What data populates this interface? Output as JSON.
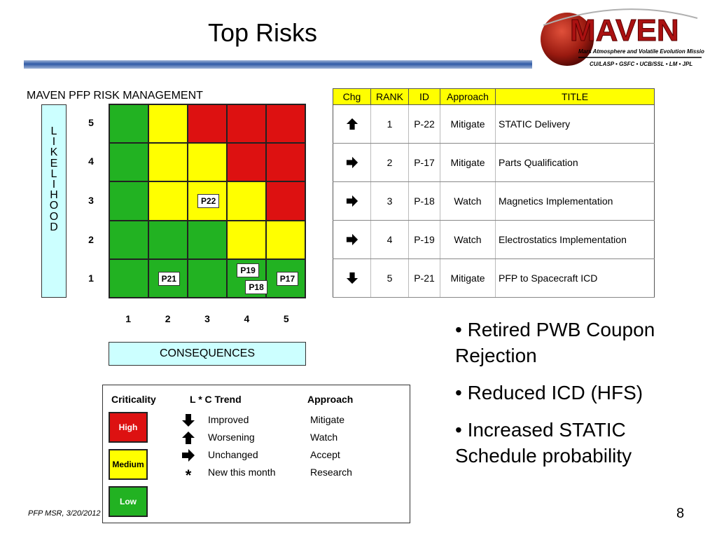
{
  "slide": {
    "title": "Top Risks",
    "footer": "PFP MSR, 3/20/2012",
    "page_number": "8"
  },
  "logo": {
    "name": "MAVEN",
    "subtitle": "Mars Atmosphere and Volatile Evolution Mission",
    "partners": "CU/LASP • GSFC • UCB/SSL • LM • JPL"
  },
  "matrix": {
    "title": "MAVEN PFP RISK MANAGEMENT",
    "likelihood_letters": [
      "L",
      "I",
      "K",
      "E",
      "L",
      "I",
      "H",
      "O",
      "O",
      "D"
    ],
    "y_labels": [
      "5",
      "4",
      "3",
      "2",
      "1"
    ],
    "x_labels": [
      "1",
      "2",
      "3",
      "4",
      "5"
    ],
    "consequences_label": "CONSEQUENCES",
    "colors": {
      "green": "#22b222",
      "yellow": "#ffff00",
      "red": "#dd1111"
    },
    "cells": [
      [
        "green",
        "yellow",
        "red",
        "red",
        "red"
      ],
      [
        "green",
        "yellow",
        "yellow",
        "red",
        "red"
      ],
      [
        "green",
        "yellow",
        "yellow",
        "yellow",
        "red"
      ],
      [
        "green",
        "green",
        "green",
        "yellow",
        "yellow"
      ],
      [
        "green",
        "green",
        "green",
        "green",
        "green"
      ]
    ],
    "risks": [
      {
        "id": "P22",
        "likelihood": 3,
        "consequence": 3
      },
      {
        "id": "P21",
        "likelihood": 1,
        "consequence": 2
      },
      {
        "id": "P19",
        "likelihood": 1,
        "consequence": 4
      },
      {
        "id": "P18",
        "likelihood": 1,
        "consequence": 4
      },
      {
        "id": "P17",
        "likelihood": 1,
        "consequence": 5
      }
    ]
  },
  "risk_table": {
    "headers": [
      "Chg",
      "RANK",
      "ID",
      "Approach",
      "TITLE"
    ],
    "rows": [
      {
        "chg": "up-arrow-icon",
        "rank": "1",
        "id": "P-22",
        "approach": "Mitigate",
        "title": "STATIC Delivery"
      },
      {
        "chg": "right-arrow-icon",
        "rank": "2",
        "id": "P-17",
        "approach": "Mitigate",
        "title": "Parts Qualification"
      },
      {
        "chg": "right-arrow-icon",
        "rank": "3",
        "id": "P-18",
        "approach": "Watch",
        "title": "Magnetics Implementation"
      },
      {
        "chg": "right-arrow-icon",
        "rank": "4",
        "id": "P-19",
        "approach": "Watch",
        "title": "Electrostatics Implementation"
      },
      {
        "chg": "down-arrow-icon",
        "rank": "5",
        "id": "P-21",
        "approach": "Mitigate",
        "title": "PFP to Spacecraft ICD"
      }
    ]
  },
  "bullets": [
    "• Retired PWB Coupon Rejection",
    "• Reduced ICD (HFS)",
    "• Increased STATIC Schedule probability"
  ],
  "legend": {
    "criticality_header": "Criticality",
    "trend_header": "L * C Trend",
    "approach_header": "Approach",
    "criticality": [
      {
        "label": "High",
        "color": "#dd1111",
        "text_color": "#ffffff"
      },
      {
        "label": "Medium",
        "color": "#ffff00",
        "text_color": "#000000"
      },
      {
        "label": "Low",
        "color": "#22b222",
        "text_color": "#ffffff"
      }
    ],
    "trends": [
      {
        "icon": "down-arrow-icon",
        "label": "Improved"
      },
      {
        "icon": "up-arrow-icon",
        "label": "Worsening"
      },
      {
        "icon": "right-arrow-icon",
        "label": "Unchanged"
      },
      {
        "icon": "asterisk-icon",
        "symbol": "*",
        "label": "New this month"
      }
    ],
    "approaches": [
      "Mitigate",
      "Watch",
      "Accept",
      "Research"
    ]
  }
}
